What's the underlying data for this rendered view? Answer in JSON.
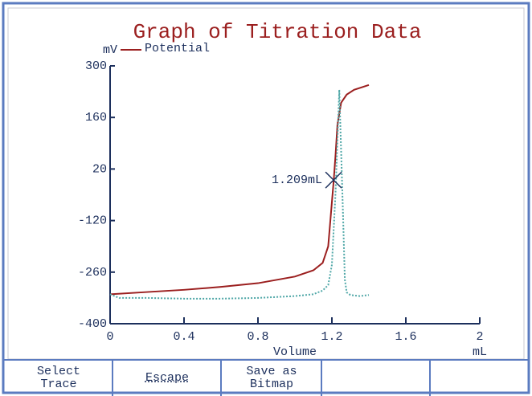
{
  "chart_data": {
    "type": "line",
    "title": "Graph of Titration Data",
    "y_label": "mV",
    "x_label": "Volume",
    "x_unit": "mL",
    "xlim": [
      0,
      2
    ],
    "xticks": [
      0,
      0.4,
      0.8,
      1.2,
      1.6,
      2
    ],
    "ylim": [
      -400,
      300
    ],
    "yticks": [
      -400,
      -260,
      -120,
      20,
      160,
      300
    ],
    "series": [
      {
        "name": "Potential",
        "color": "#9b1f1f",
        "style": "solid",
        "x": [
          0,
          0.2,
          0.4,
          0.6,
          0.8,
          1.0,
          1.1,
          1.15,
          1.18,
          1.2,
          1.21,
          1.22,
          1.23,
          1.25,
          1.28,
          1.32,
          1.4
        ],
        "values": [
          -320,
          -314,
          -308,
          -300,
          -290,
          -272,
          -255,
          -235,
          -190,
          -70,
          -10,
          60,
          140,
          200,
          222,
          235,
          248
        ]
      },
      {
        "color": "#4fa7a7",
        "style": "dotted",
        "x": [
          0,
          0.05,
          0.2,
          0.4,
          0.6,
          0.8,
          1.0,
          1.1,
          1.15,
          1.18,
          1.2,
          1.22,
          1.24,
          1.26,
          1.27,
          1.28,
          1.3,
          1.35,
          1.4
        ],
        "values": [
          -320,
          -330,
          -330,
          -332,
          -332,
          -330,
          -325,
          -320,
          -310,
          -295,
          -240,
          -40,
          235,
          -100,
          -280,
          -315,
          -322,
          -325,
          -322
        ]
      }
    ],
    "annotations": [
      {
        "x": 1.209,
        "y": -10,
        "label": "1.209mL"
      }
    ]
  },
  "buttons": [
    {
      "lines": [
        "Select",
        "Trace"
      ]
    },
    {
      "lines": [
        "Escape"
      ]
    },
    {
      "lines": [
        "Save as",
        "Bitmap"
      ]
    }
  ]
}
